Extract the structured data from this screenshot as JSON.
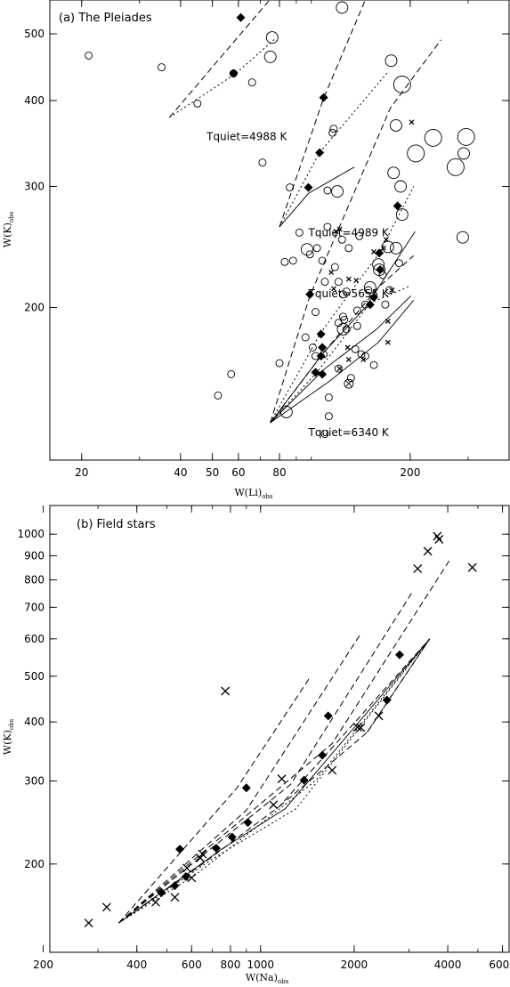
{
  "chart_data": [
    {
      "type": "scatter",
      "title": "(a) The Pleiades",
      "xlabel": "W(Li)",
      "xlabel_sub": "obs",
      "ylabel": "W(K)",
      "ylabel_sub": "obs",
      "xscale": "log",
      "yscale": "log",
      "xlim": [
        16,
        400
      ],
      "ylim": [
        120,
        560
      ],
      "xticks": [
        20,
        40,
        50,
        60,
        80,
        200
      ],
      "yticks": [
        200,
        300,
        400,
        500
      ],
      "grid": false,
      "annotations": [
        {
          "text": "Tquiet=4988 K",
          "x": 48,
          "y": 350
        },
        {
          "text": "Tquiet=4989 K",
          "x": 98,
          "y": 254
        },
        {
          "text": "Tquiet=5655 K",
          "x": 98,
          "y": 207
        },
        {
          "text": "Tquiet=6340 K",
          "x": 98,
          "y": 130
        }
      ],
      "circles": [
        [
          21,
          465,
          "s"
        ],
        [
          35,
          447,
          "s"
        ],
        [
          45,
          396,
          "s"
        ],
        [
          58,
          438,
          "s"
        ],
        [
          66,
          425,
          "s"
        ],
        [
          71,
          325,
          "s"
        ],
        [
          86,
          299,
          "s"
        ],
        [
          92,
          257,
          "s"
        ],
        [
          99,
          239,
          "s"
        ],
        [
          104,
          244,
          "s"
        ],
        [
          108,
          234,
          "s"
        ],
        [
          112,
          262,
          "s"
        ],
        [
          116,
          359,
          "s"
        ],
        [
          117,
          364,
          "s"
        ],
        [
          124,
          251,
          "s"
        ],
        [
          130,
          244,
          "s"
        ],
        [
          140,
          254,
          "s"
        ],
        [
          121,
          218,
          "s"
        ],
        [
          125,
          209,
          "s"
        ],
        [
          118,
          229,
          "s"
        ],
        [
          138,
          198,
          "s"
        ],
        [
          146,
          202,
          "s"
        ],
        [
          110,
          218,
          "s"
        ],
        [
          103,
          197,
          "s"
        ],
        [
          96,
          181,
          "s"
        ],
        [
          101,
          175,
          "s"
        ],
        [
          103,
          170,
          "s"
        ],
        [
          109,
          171,
          "s"
        ],
        [
          121,
          163,
          "s"
        ],
        [
          136,
          174,
          "s"
        ],
        [
          142,
          171,
          "s"
        ],
        [
          155,
          165,
          "s"
        ],
        [
          80,
          166,
          "s"
        ],
        [
          57,
          160,
          "s"
        ],
        [
          52,
          149,
          "s"
        ],
        [
          113,
          148,
          "s"
        ],
        [
          113,
          139,
          "s"
        ],
        [
          110,
          131,
          "s"
        ],
        [
          132,
          158,
          "s"
        ],
        [
          126,
          192,
          "s"
        ],
        [
          128,
          186,
          "s"
        ],
        [
          149,
          212,
          "s"
        ],
        [
          165,
          223,
          "s"
        ],
        [
          185,
          232,
          "s"
        ],
        [
          83,
          233,
          "s"
        ],
        [
          88,
          234,
          "s"
        ],
        [
          112,
          296,
          "s"
        ],
        [
          121,
          190,
          "s"
        ],
        [
          173,
          212,
          "s"
        ],
        [
          168,
          202,
          "s"
        ],
        [
          128,
          211,
          "s"
        ],
        [
          146,
          170,
          "s"
        ],
        [
          138,
          188,
          "s"
        ],
        [
          125,
          194,
          "s"
        ],
        [
          124,
          546,
          "m"
        ],
        [
          76,
          494,
          "m"
        ],
        [
          75,
          463,
          "m"
        ],
        [
          175,
          457,
          "m"
        ],
        [
          181,
          368,
          "m"
        ],
        [
          178,
          314,
          "m"
        ],
        [
          120,
          295,
          "m"
        ],
        [
          187,
          300,
          "m"
        ],
        [
          171,
          245,
          "m"
        ],
        [
          161,
          227,
          "m"
        ],
        [
          181,
          244,
          "m"
        ],
        [
          291,
          335,
          "m"
        ],
        [
          289,
          253,
          "m"
        ],
        [
          151,
          214,
          "m"
        ],
        [
          125,
          186,
          "m"
        ],
        [
          160,
          231,
          "m"
        ],
        [
          189,
          273,
          "m"
        ],
        [
          97,
          243,
          "m"
        ],
        [
          84,
          141,
          "m"
        ],
        [
          189,
          422,
          "l"
        ],
        [
          208,
          335,
          "l"
        ],
        [
          275,
          320,
          "l"
        ],
        [
          235,
          353,
          "l"
        ],
        [
          296,
          354,
          "l"
        ]
      ],
      "crosses": [
        [
          202,
          372
        ],
        [
          119,
          258
        ],
        [
          115,
          225
        ],
        [
          117,
          213
        ],
        [
          122,
          163
        ],
        [
          129,
          175
        ],
        [
          130,
          168
        ],
        [
          155,
          241
        ],
        [
          166,
          244
        ],
        [
          176,
          212
        ],
        [
          169,
          251
        ],
        [
          171,
          191
        ],
        [
          171,
          178
        ],
        [
          144,
          168
        ],
        [
          137,
          219
        ],
        [
          130,
          220
        ],
        [
          122,
          260
        ]
      ],
      "crossed_circles": [
        [
          130,
          155
        ]
      ],
      "diamonds": [
        [
          61,
          528
        ],
        [
          58,
          438
        ],
        [
          109,
          404
        ],
        [
          106,
          336
        ],
        [
          98,
          299
        ],
        [
          183,
          281
        ],
        [
          162,
          227
        ],
        [
          161,
          240
        ],
        [
          155,
          207
        ],
        [
          151,
          202
        ],
        [
          99,
          209
        ],
        [
          107,
          183
        ],
        [
          107,
          170
        ],
        [
          108,
          175
        ],
        [
          103,
          161
        ],
        [
          108,
          160
        ]
      ],
      "tracks": [
        {
          "style": "dashed",
          "points": [
            [
              37,
              378
            ],
            [
              77,
              570
            ]
          ]
        },
        {
          "style": "dotted",
          "points": [
            [
              37,
              378
            ],
            [
              59,
              438
            ],
            [
              78,
              493
            ]
          ]
        },
        {
          "style": "dashed",
          "points": [
            [
              80,
              262
            ],
            [
              109,
              403
            ],
            [
              146,
              560
            ]
          ]
        },
        {
          "style": "dotted",
          "points": [
            [
              80,
              262
            ],
            [
              106,
              336
            ],
            [
              171,
              440
            ]
          ]
        },
        {
          "style": "solid",
          "points": [
            [
              80,
              262
            ],
            [
              98,
              293
            ],
            [
              135,
              320
            ]
          ]
        },
        {
          "style": "dashed",
          "points": [
            [
              75,
              136
            ],
            [
              99,
              208
            ],
            [
              174,
              390
            ],
            [
              248,
              490
            ]
          ]
        },
        {
          "style": "dotted",
          "points": [
            [
              75,
              136
            ],
            [
              107,
              184
            ],
            [
              161,
              240
            ],
            [
              205,
              300
            ]
          ]
        },
        {
          "style": "solid",
          "points": [
            [
              75,
              136
            ],
            [
              109,
              172
            ],
            [
              146,
              200
            ],
            [
              207,
              258
            ]
          ]
        },
        {
          "style": "dashed",
          "points": [
            [
              75,
              136
            ],
            [
              109,
              172
            ],
            [
              160,
              214
            ],
            [
              205,
              238
            ]
          ]
        },
        {
          "style": "dotted",
          "points": [
            [
              75,
              136
            ],
            [
              104,
              161
            ],
            [
              151,
              203
            ],
            [
              200,
              215
            ]
          ]
        },
        {
          "style": "solid",
          "points": [
            [
              75,
              136
            ],
            [
              110,
              163
            ],
            [
              158,
              186
            ],
            [
              201,
              208
            ]
          ]
        },
        {
          "style": "solid",
          "points": [
            [
              75,
              136
            ],
            [
              113,
              156
            ],
            [
              160,
              178
            ],
            [
              205,
              205
            ]
          ]
        }
      ]
    },
    {
      "type": "scatter",
      "title": "(b) Field stars",
      "xlabel": "W(Na)",
      "xlabel_sub": "obs",
      "ylabel": "W(K)",
      "ylabel_sub": "obs",
      "xscale": "log",
      "yscale": "log",
      "xlim": [
        210,
        6300
      ],
      "ylim": [
        130,
        1150
      ],
      "xticks": [
        200,
        400,
        600,
        800,
        1000,
        2000,
        4000,
        6000
      ],
      "yticks": [
        200,
        300,
        400,
        500,
        600,
        700,
        800,
        900,
        1000
      ],
      "grid": false,
      "crosses": [
        [
          280,
          150
        ],
        [
          320,
          162
        ],
        [
          460,
          166
        ],
        [
          530,
          170
        ],
        [
          580,
          196
        ],
        [
          600,
          187
        ],
        [
          640,
          206
        ],
        [
          650,
          210
        ],
        [
          770,
          465
        ],
        [
          1100,
          267
        ],
        [
          1170,
          303
        ],
        [
          1700,
          316
        ],
        [
          2050,
          390
        ],
        [
          2100,
          389
        ],
        [
          2400,
          412
        ],
        [
          3200,
          845
        ],
        [
          3450,
          920
        ],
        [
          3700,
          990
        ],
        [
          3750,
          975
        ],
        [
          4800,
          850
        ]
      ],
      "diamonds": [
        [
          480,
          174
        ],
        [
          530,
          180
        ],
        [
          550,
          215
        ],
        [
          575,
          188
        ],
        [
          720,
          216
        ],
        [
          810,
          228
        ],
        [
          900,
          290
        ],
        [
          910,
          245
        ],
        [
          1380,
          301
        ],
        [
          1580,
          340
        ],
        [
          1650,
          412
        ],
        [
          2550,
          445
        ],
        [
          2800,
          555
        ]
      ],
      "tracks": [
        {
          "style": "dashed",
          "points": [
            [
              350,
              150
            ],
            [
              840,
              290
            ],
            [
              1450,
              500
            ]
          ]
        },
        {
          "style": "dashed",
          "points": [
            [
              350,
              150
            ],
            [
              900,
              260
            ],
            [
              2100,
              615
            ]
          ]
        },
        {
          "style": "dashed",
          "points": [
            [
              350,
              150
            ],
            [
              1250,
              295
            ],
            [
              3100,
              760
            ]
          ]
        },
        {
          "style": "dashed",
          "points": [
            [
              350,
              150
            ],
            [
              1700,
              360
            ],
            [
              4050,
              880
            ]
          ]
        },
        {
          "style": "dotted",
          "points": [
            [
              350,
              150
            ],
            [
              700,
              205
            ],
            [
              1300,
              262
            ],
            [
              3500,
              600
            ]
          ]
        },
        {
          "style": "dashed",
          "points": [
            [
              350,
              150
            ],
            [
              650,
              200
            ],
            [
              1150,
              265
            ],
            [
              3500,
              600
            ]
          ]
        },
        {
          "style": "solid",
          "points": [
            [
              350,
              150
            ],
            [
              750,
              215
            ],
            [
              1200,
              262
            ],
            [
              3500,
              600
            ]
          ]
        },
        {
          "style": "dotted",
          "points": [
            [
              350,
              150
            ],
            [
              620,
              190
            ],
            [
              1500,
              300
            ],
            [
              3500,
              600
            ]
          ]
        },
        {
          "style": "dashed",
          "points": [
            [
              1150,
              265
            ],
            [
              2200,
              380
            ],
            [
              3500,
              600
            ]
          ]
        },
        {
          "style": "dashed",
          "points": [
            [
              2200,
              380
            ],
            [
              3500,
              600
            ]
          ]
        }
      ]
    }
  ]
}
